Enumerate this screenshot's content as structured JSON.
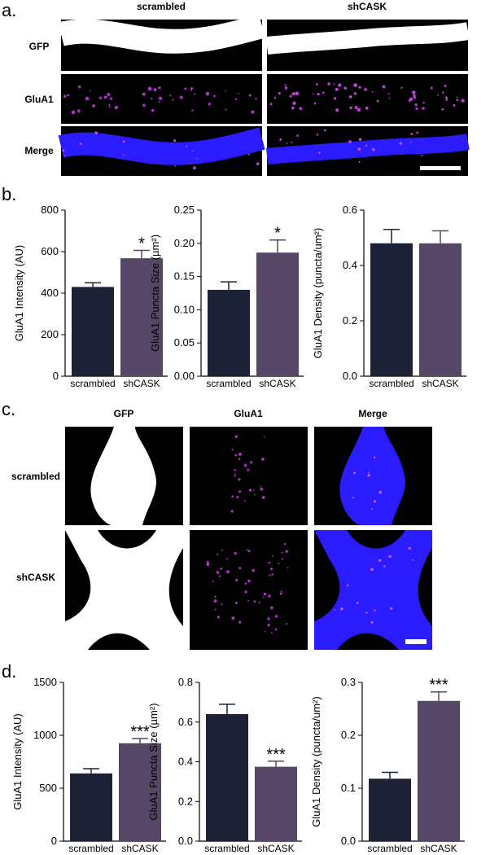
{
  "panels": {
    "a": {
      "label": "a.",
      "columns": [
        "scrambled",
        "shCASK"
      ],
      "rows": [
        "GFP",
        "GluA1",
        "Merge"
      ]
    },
    "b": {
      "label": "b."
    },
    "c": {
      "label": "c.",
      "columns": [
        "GFP",
        "GluA1",
        "Merge"
      ],
      "rows": [
        "scrambled",
        "shCASK"
      ]
    },
    "d": {
      "label": "d."
    }
  },
  "chart_data": [
    {
      "type": "bar",
      "ylabel": "GluA1 Intensity  (AU)",
      "categories": [
        "scrambled",
        "shCASK"
      ],
      "values": [
        430,
        568
      ],
      "errors": [
        20,
        38
      ],
      "colors": [
        "#1e2236",
        "#574766"
      ],
      "significance": [
        null,
        "*"
      ],
      "ylim": [
        0,
        800
      ],
      "yticks": [
        0,
        200,
        400,
        600,
        800
      ]
    },
    {
      "type": "bar",
      "ylabel": "GluA1 Puncta Size (µm²)",
      "categories": [
        "scrambled",
        "shCASK"
      ],
      "values": [
        0.13,
        0.186
      ],
      "errors": [
        0.012,
        0.019
      ],
      "colors": [
        "#1e2236",
        "#574766"
      ],
      "significance": [
        null,
        "*"
      ],
      "ylim": [
        0,
        0.25
      ],
      "yticks": [
        {
          "value": 0,
          "label": "0.00"
        },
        {
          "value": 0.05,
          "label": "0.05"
        },
        {
          "value": 0.1,
          "label": "0.10"
        },
        {
          "value": 0.15,
          "label": "0.15"
        },
        {
          "value": 0.2,
          "label": "0.20"
        },
        {
          "value": 0.25,
          "label": "0.25"
        }
      ]
    },
    {
      "type": "bar",
      "ylabel": "GluA1 Density (puncta/um²)",
      "categories": [
        "scrambled",
        "shCASK"
      ],
      "values": [
        0.48,
        0.48
      ],
      "errors": [
        0.05,
        0.045
      ],
      "colors": [
        "#1e2236",
        "#574766"
      ],
      "ylim": [
        0,
        0.6
      ],
      "yticks": [
        {
          "value": 0,
          "label": "0.0"
        },
        0.2,
        0.4,
        0.6
      ]
    },
    {
      "type": "bar",
      "ylabel": "GluA1 Intensity  (AU)",
      "categories": [
        "scrambled",
        "shCASK"
      ],
      "values": [
        640,
        925
      ],
      "errors": [
        45,
        45
      ],
      "colors": [
        "#1e2236",
        "#574766"
      ],
      "significance": [
        null,
        "***"
      ],
      "ylim": [
        0,
        1500
      ],
      "yticks": [
        0,
        500,
        1000,
        1500
      ]
    },
    {
      "type": "bar",
      "ylabel": "GluA1 Puncta Size (µm²)",
      "categories": [
        "scrambled",
        "shCASK"
      ],
      "values": [
        0.64,
        0.375
      ],
      "errors": [
        0.05,
        0.028
      ],
      "colors": [
        "#1e2236",
        "#574766"
      ],
      "significance": [
        null,
        "***"
      ],
      "ylim": [
        0,
        0.8
      ],
      "yticks": [
        {
          "value": 0,
          "label": "0.0"
        },
        0.2,
        0.4,
        0.6,
        0.8
      ]
    },
    {
      "type": "bar",
      "ylabel": "GluA1 Density (puncta/um²)",
      "categories": [
        "scrambled",
        "shCASK"
      ],
      "values": [
        0.118,
        0.265
      ],
      "errors": [
        0.012,
        0.017
      ],
      "colors": [
        "#1e2236",
        "#574766"
      ],
      "significance": [
        null,
        "***"
      ],
      "ylim": [
        0,
        0.3
      ],
      "yticks": [
        {
          "value": 0,
          "label": "0.0"
        },
        0.1,
        0.2,
        0.3
      ]
    }
  ]
}
